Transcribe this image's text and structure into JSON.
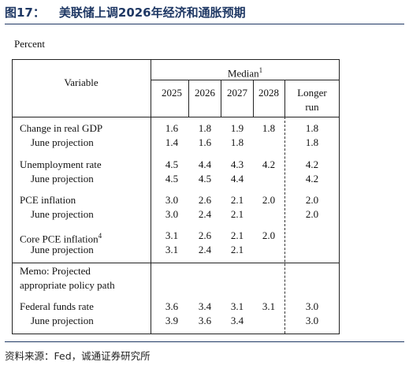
{
  "header": {
    "figure_number": "图17：",
    "figure_title": "美联储上调2026年经济和通胀预期"
  },
  "units": "Percent",
  "table": {
    "variable_header": "Variable",
    "median_header": "Median",
    "median_sup": "1",
    "years": [
      "2025",
      "2026",
      "2027",
      "2028"
    ],
    "longer_run_line1": "Longer",
    "longer_run_line2": "run",
    "rows": [
      {
        "label": "Change in real GDP",
        "sup": "",
        "v": [
          "1.6",
          "1.8",
          "1.9",
          "1.8"
        ],
        "lr": "1.8"
      },
      {
        "label": "June projection",
        "sup": "",
        "v": [
          "1.4",
          "1.6",
          "1.8",
          ""
        ],
        "lr": "1.8"
      },
      {
        "label": "Unemployment rate",
        "sup": "",
        "v": [
          "4.5",
          "4.4",
          "4.3",
          "4.2"
        ],
        "lr": "4.2"
      },
      {
        "label": "June projection",
        "sup": "",
        "v": [
          "4.5",
          "4.5",
          "4.4",
          ""
        ],
        "lr": "4.2"
      },
      {
        "label": "PCE inflation",
        "sup": "",
        "v": [
          "3.0",
          "2.6",
          "2.1",
          "2.0"
        ],
        "lr": "2.0"
      },
      {
        "label": "June projection",
        "sup": "",
        "v": [
          "3.0",
          "2.4",
          "2.1",
          ""
        ],
        "lr": "2.0"
      },
      {
        "label": "Core PCE inflation",
        "sup": "4",
        "v": [
          "3.1",
          "2.6",
          "2.1",
          "2.0"
        ],
        "lr": ""
      },
      {
        "label": "June projection",
        "sup": "",
        "v": [
          "3.1",
          "2.4",
          "2.1",
          ""
        ],
        "lr": ""
      },
      {
        "label": "Federal funds rate",
        "sup": "",
        "v": [
          "3.6",
          "3.4",
          "3.1",
          "3.1"
        ],
        "lr": "3.0"
      },
      {
        "label": "June projection",
        "sup": "",
        "v": [
          "3.9",
          "3.6",
          "3.4",
          ""
        ],
        "lr": "3.0"
      }
    ],
    "memo_line1": "Memo: Projected",
    "memo_line2": "appropriate policy path"
  },
  "source": "资料来源：Fed，诚通证券研究所"
}
